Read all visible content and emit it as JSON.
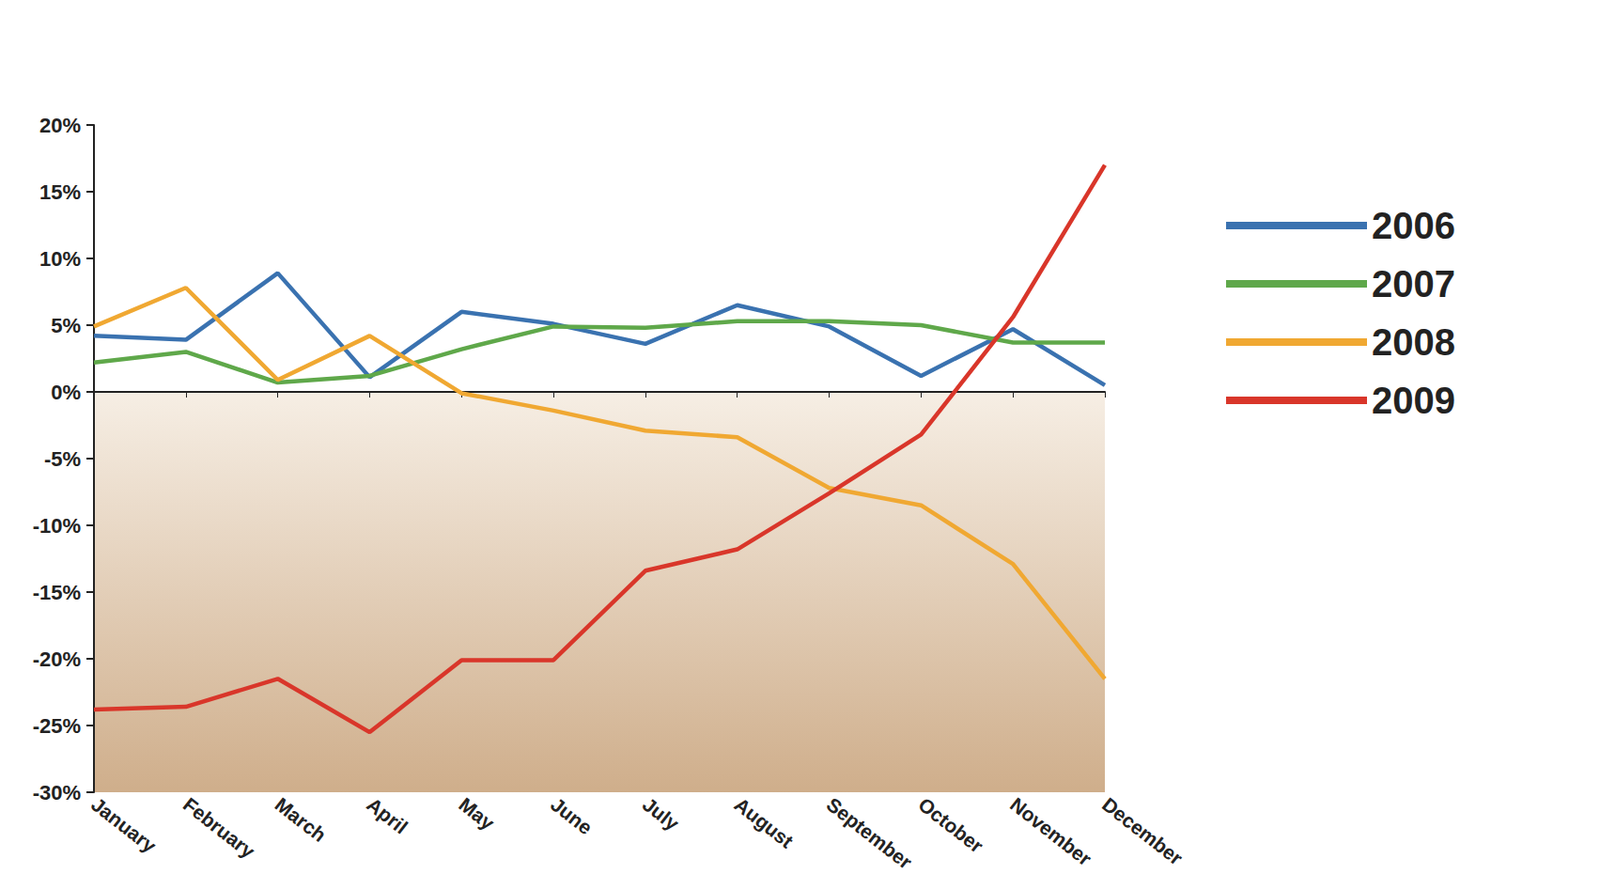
{
  "chart_data": {
    "type": "line",
    "categories": [
      "January",
      "February",
      "March",
      "April",
      "May",
      "June",
      "July",
      "August",
      "September",
      "October",
      "November",
      "December"
    ],
    "series": [
      {
        "name": "2006",
        "color": "#3a72b0",
        "values": [
          4.2,
          3.9,
          8.9,
          1.1,
          6.0,
          5.1,
          3.6,
          6.5,
          4.9,
          1.2,
          4.7,
          0.5
        ]
      },
      {
        "name": "2007",
        "color": "#5fa84a",
        "values": [
          2.2,
          3.0,
          0.7,
          1.2,
          3.2,
          4.9,
          4.8,
          5.3,
          5.3,
          5.0,
          3.7,
          3.7
        ]
      },
      {
        "name": "2008",
        "color": "#f0a832",
        "values": [
          4.9,
          7.8,
          0.9,
          4.2,
          -0.1,
          -1.4,
          -2.9,
          -3.4,
          -7.2,
          -8.5,
          -12.9,
          -21.5
        ]
      },
      {
        "name": "2009",
        "color": "#d9362a",
        "values": [
          -23.8,
          -23.6,
          -21.5,
          -25.5,
          -20.1,
          -20.1,
          -13.4,
          -11.8,
          -7.6,
          -3.2,
          5.6,
          17.0
        ]
      }
    ],
    "ylim": [
      -30,
      20
    ],
    "yticks": [
      {
        "value": -30,
        "label": "-30%"
      },
      {
        "value": -25,
        "label": "-25%"
      },
      {
        "value": -20,
        "label": "-20%"
      },
      {
        "value": -15,
        "label": "-15%"
      },
      {
        "value": -10,
        "label": "-10%"
      },
      {
        "value": -5,
        "label": "-5%"
      },
      {
        "value": 0,
        "label": "0%"
      },
      {
        "value": 5,
        "label": "5%"
      },
      {
        "value": 10,
        "label": "10%"
      },
      {
        "value": 15,
        "label": "15%"
      },
      {
        "value": 20,
        "label": "20%"
      }
    ],
    "grid": false,
    "legend": "right",
    "data_labels": false
  }
}
